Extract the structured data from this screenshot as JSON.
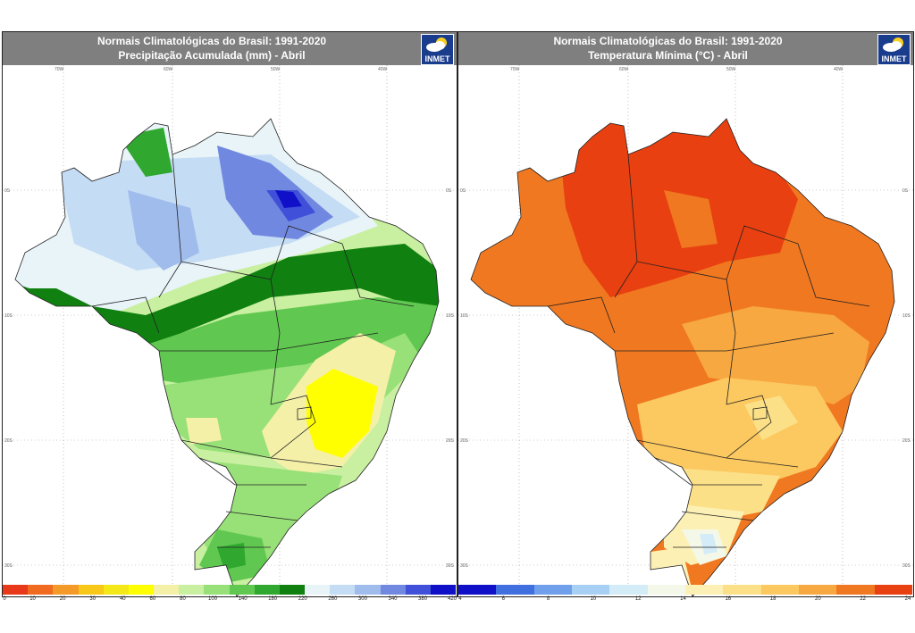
{
  "maps": [
    {
      "title_line1": "Normais Climatológicas do Brasil: 1991-2020",
      "title_line2": "Precipitação Acumulada (mm) - Abril",
      "logo_text": "INMET",
      "logo_icon": "cloud-sun-icon",
      "colorbar": {
        "colors": [
          "#e83a1a",
          "#f06a20",
          "#f49a28",
          "#f8c818",
          "#f4e818",
          "#ffff00",
          "#f4f0a8",
          "#c8f0a0",
          "#98e078",
          "#60c850",
          "#30a830",
          "#108010",
          "#e8f4f8",
          "#c4dcf4",
          "#a0bcec",
          "#7088e0",
          "#4050d8",
          "#1010c8"
        ],
        "tick_labels": [
          "0",
          "10",
          "20",
          "30",
          "40",
          "60",
          "80",
          "100",
          "140",
          "180",
          "220",
          "260",
          "300",
          "340",
          "380",
          "420"
        ]
      },
      "lat_labels": [
        "0S",
        "10S",
        "20S",
        "30S"
      ],
      "lon_labels": [
        "70W",
        "60W",
        "50W",
        "40W"
      ]
    },
    {
      "title_line1": "Normais Climatológicas do Brasil: 1991-2020",
      "title_line2": "Temperatura Mínima (°C) - Abril",
      "logo_text": "INMET",
      "logo_icon": "cloud-sun-icon",
      "colorbar": {
        "colors": [
          "#1010c8",
          "#4070e0",
          "#70a0ec",
          "#a8d0f4",
          "#d4ecf8",
          "#f4f8e8",
          "#fcf0b4",
          "#fce088",
          "#fcc860",
          "#f8a840",
          "#f07820",
          "#e84010"
        ],
        "tick_labels": [
          "4",
          "6",
          "8",
          "10",
          "12",
          "14",
          "16",
          "18",
          "20",
          "22",
          "24"
        ]
      },
      "lat_labels": [
        "0S",
        "10S",
        "20S",
        "30S"
      ],
      "lon_labels": [
        "70W",
        "60W",
        "50W",
        "40W"
      ]
    }
  ]
}
